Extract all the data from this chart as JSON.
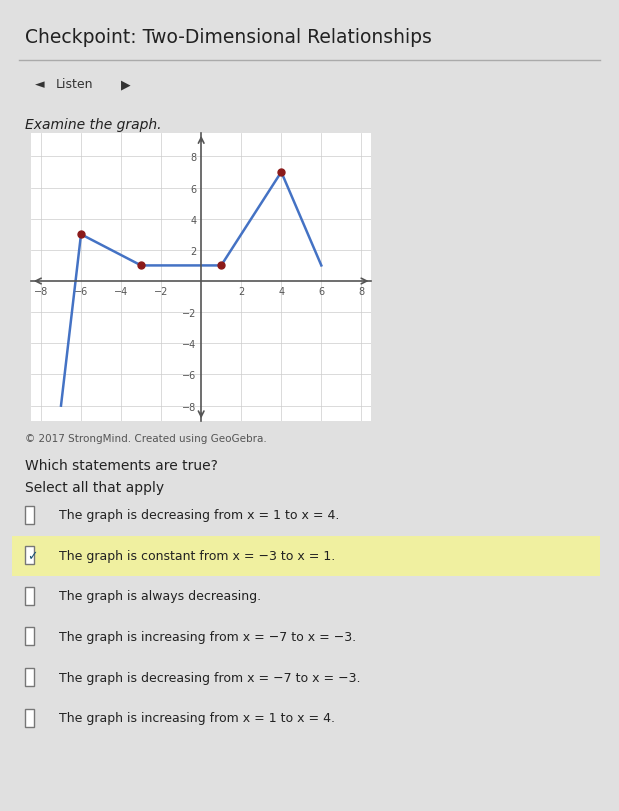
{
  "page_title": "Checkpoint: Two-Dimensional Relationships",
  "listen_label": "◄▶ Listen",
  "examine_label": "Examine the graph.",
  "copyright": "© 2017 StrongMind. Created using GeoGebra.",
  "which_statements": "Which statements are true?",
  "select_all": "Select all that apply",
  "graph_points": [
    [
      -7,
      -8
    ],
    [
      -6,
      3
    ],
    [
      -3,
      1
    ],
    [
      1,
      1
    ],
    [
      4,
      7
    ],
    [
      6,
      1
    ]
  ],
  "dot_points": [
    [
      -6,
      3
    ],
    [
      -3,
      1
    ],
    [
      1,
      1
    ],
    [
      4,
      7
    ]
  ],
  "line_color": "#4472C4",
  "dot_color": "#8B1A1A",
  "xlim": [
    -8.5,
    8.5
  ],
  "ylim": [
    -9,
    9.5
  ],
  "xticks": [
    -8,
    -6,
    -4,
    -2,
    2,
    4,
    6,
    8
  ],
  "yticks": [
    -8,
    -6,
    -4,
    -2,
    2,
    4,
    6,
    8
  ],
  "grid_color": "#cccccc",
  "page_bg": "#e0e0e0",
  "graph_bg": "#ffffff",
  "checkboxes": [
    {
      "checked": false,
      "label": "The graph is decreasing from x = 1 to x = 4."
    },
    {
      "checked": true,
      "label": "The graph is constant from x = −3 to x = 1."
    },
    {
      "checked": false,
      "label": "The graph is always decreasing."
    },
    {
      "checked": false,
      "label": "The graph is increasing from x = −7 to x = −3."
    },
    {
      "checked": false,
      "label": "The graph is decreasing from x = −7 to x = −3."
    },
    {
      "checked": false,
      "label": "The graph is increasing from x = 1 to x = 4."
    }
  ]
}
